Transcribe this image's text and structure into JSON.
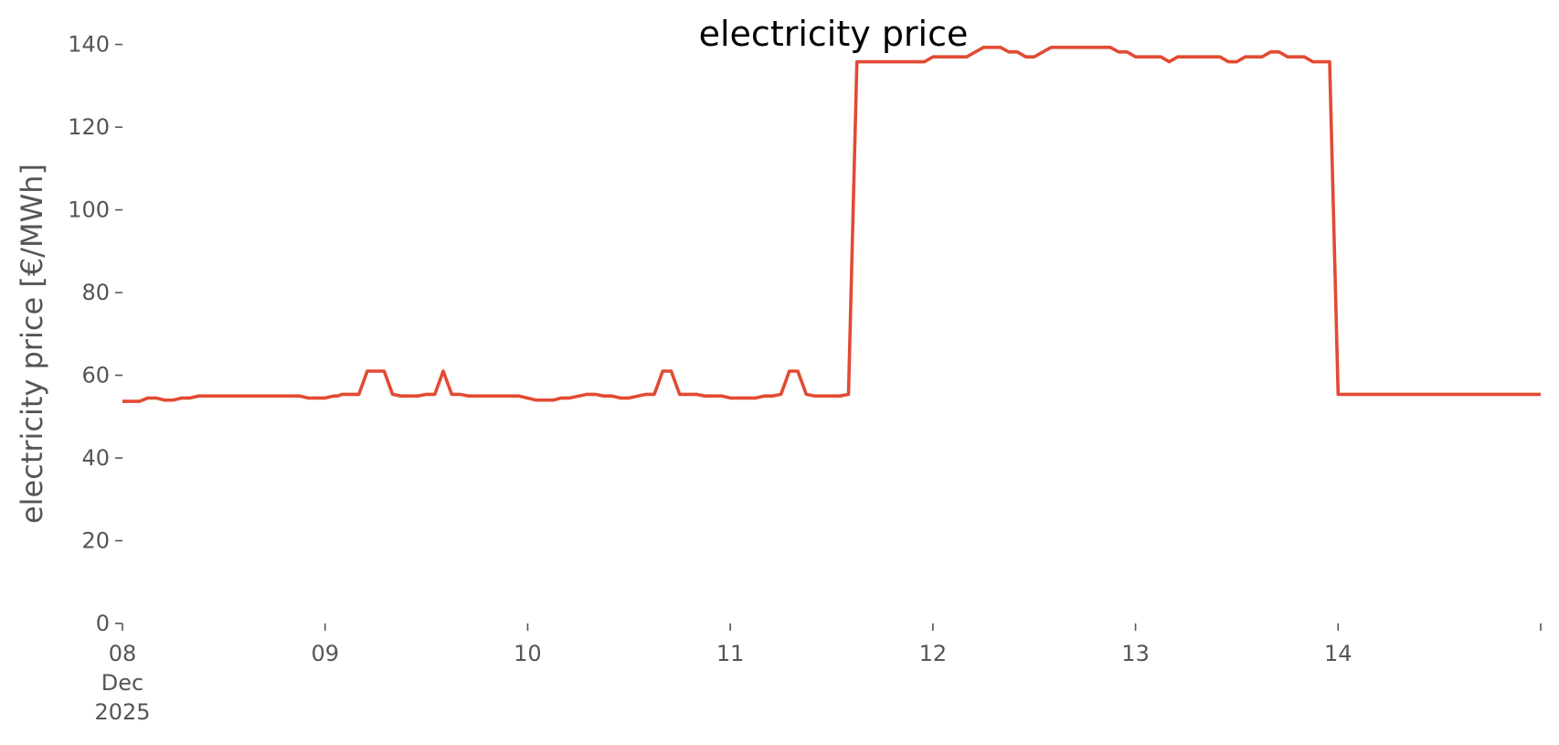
{
  "chart_data": {
    "type": "line",
    "title": "electricity price",
    "xlabel": "",
    "ylabel": "electricity price [€/MWh]",
    "ylim": [
      0,
      145
    ],
    "yticks": [
      0,
      20,
      40,
      60,
      80,
      100,
      120,
      140
    ],
    "xlim": [
      "2025-12-08T00:00",
      "2025-12-15T00:00"
    ],
    "xtick_labels": [
      {
        "date": "2025-12-08",
        "lines": [
          "08",
          "Dec",
          "2025"
        ]
      },
      {
        "date": "2025-12-09",
        "lines": [
          "09"
        ]
      },
      {
        "date": "2025-12-10",
        "lines": [
          "10"
        ]
      },
      {
        "date": "2025-12-11",
        "lines": [
          "11"
        ]
      },
      {
        "date": "2025-12-12",
        "lines": [
          "12"
        ]
      },
      {
        "date": "2025-12-13",
        "lines": [
          "13"
        ]
      },
      {
        "date": "2025-12-14",
        "lines": [
          "14"
        ]
      },
      {
        "date": "2025-12-15",
        "lines": [
          ""
        ]
      }
    ],
    "grid": false,
    "color": "#E24A33",
    "series": [
      {
        "name": "",
        "points": [
          [
            "2025-12-08T00:00",
            53.7
          ],
          [
            "2025-12-08T02:00",
            53.7
          ],
          [
            "2025-12-08T03:00",
            54.5
          ],
          [
            "2025-12-08T04:00",
            54.5
          ],
          [
            "2025-12-08T05:00",
            54.0
          ],
          [
            "2025-12-08T06:00",
            54.0
          ],
          [
            "2025-12-08T07:00",
            54.5
          ],
          [
            "2025-12-08T08:00",
            54.5
          ],
          [
            "2025-12-08T09:00",
            55.0
          ],
          [
            "2025-12-08T21:00",
            55.0
          ],
          [
            "2025-12-08T22:00",
            54.5
          ],
          [
            "2025-12-09T00:00",
            54.5
          ],
          [
            "2025-12-09T01:00",
            55.0
          ],
          [
            "2025-12-09T01:30",
            55.0
          ],
          [
            "2025-12-09T02:00",
            55.4
          ],
          [
            "2025-12-09T04:00",
            55.4
          ],
          [
            "2025-12-09T05:00",
            61.0
          ],
          [
            "2025-12-09T07:00",
            61.0
          ],
          [
            "2025-12-09T08:00",
            55.4
          ],
          [
            "2025-12-09T09:00",
            55.0
          ],
          [
            "2025-12-09T11:00",
            55.0
          ],
          [
            "2025-12-09T12:00",
            55.4
          ],
          [
            "2025-12-09T13:00",
            55.4
          ],
          [
            "2025-12-09T14:00",
            61.0
          ],
          [
            "2025-12-09T15:00",
            55.4
          ],
          [
            "2025-12-09T16:00",
            55.4
          ],
          [
            "2025-12-09T17:00",
            55.0
          ],
          [
            "2025-12-09T23:00",
            55.0
          ],
          [
            "2025-12-10T01:00",
            54.0
          ],
          [
            "2025-12-10T03:00",
            54.0
          ],
          [
            "2025-12-10T04:00",
            54.5
          ],
          [
            "2025-12-10T05:00",
            54.5
          ],
          [
            "2025-12-10T07:00",
            55.4
          ],
          [
            "2025-12-10T08:00",
            55.4
          ],
          [
            "2025-12-10T09:00",
            55.0
          ],
          [
            "2025-12-10T10:00",
            55.0
          ],
          [
            "2025-12-10T11:00",
            54.5
          ],
          [
            "2025-12-10T12:00",
            54.5
          ],
          [
            "2025-12-10T14:00",
            55.4
          ],
          [
            "2025-12-10T15:00",
            55.4
          ],
          [
            "2025-12-10T16:00",
            61.0
          ],
          [
            "2025-12-10T17:00",
            61.0
          ],
          [
            "2025-12-10T18:00",
            55.4
          ],
          [
            "2025-12-10T20:00",
            55.4
          ],
          [
            "2025-12-10T21:00",
            55.0
          ],
          [
            "2025-12-10T23:00",
            55.0
          ],
          [
            "2025-12-11T00:00",
            54.5
          ],
          [
            "2025-12-11T03:00",
            54.5
          ],
          [
            "2025-12-11T04:00",
            55.0
          ],
          [
            "2025-12-11T05:00",
            55.0
          ],
          [
            "2025-12-11T06:00",
            55.4
          ],
          [
            "2025-12-11T07:00",
            61.0
          ],
          [
            "2025-12-11T08:00",
            61.0
          ],
          [
            "2025-12-11T09:00",
            55.4
          ],
          [
            "2025-12-11T10:00",
            55.0
          ],
          [
            "2025-12-11T13:00",
            55.0
          ],
          [
            "2025-12-11T14:00",
            55.4
          ],
          [
            "2025-12-11T15:00",
            135.8
          ],
          [
            "2025-12-11T23:00",
            135.8
          ],
          [
            "2025-12-12T00:00",
            137.0
          ],
          [
            "2025-12-12T04:00",
            137.0
          ],
          [
            "2025-12-12T06:00",
            139.3
          ],
          [
            "2025-12-12T08:00",
            139.3
          ],
          [
            "2025-12-12T09:00",
            138.2
          ],
          [
            "2025-12-12T10:00",
            138.2
          ],
          [
            "2025-12-12T11:00",
            137.0
          ],
          [
            "2025-12-12T12:00",
            137.0
          ],
          [
            "2025-12-12T14:00",
            139.3
          ],
          [
            "2025-12-12T21:00",
            139.3
          ],
          [
            "2025-12-12T22:00",
            138.2
          ],
          [
            "2025-12-12T23:00",
            138.2
          ],
          [
            "2025-12-13T00:00",
            137.0
          ],
          [
            "2025-12-13T03:00",
            137.0
          ],
          [
            "2025-12-13T04:00",
            135.8
          ],
          [
            "2025-12-13T05:00",
            137.0
          ],
          [
            "2025-12-13T10:00",
            137.0
          ],
          [
            "2025-12-13T11:00",
            135.8
          ],
          [
            "2025-12-13T12:00",
            135.8
          ],
          [
            "2025-12-13T13:00",
            137.0
          ],
          [
            "2025-12-13T15:00",
            137.0
          ],
          [
            "2025-12-13T16:00",
            138.2
          ],
          [
            "2025-12-13T17:00",
            138.2
          ],
          [
            "2025-12-13T18:00",
            137.0
          ],
          [
            "2025-12-13T20:00",
            137.0
          ],
          [
            "2025-12-13T21:00",
            135.8
          ],
          [
            "2025-12-13T23:00",
            135.8
          ],
          [
            "2025-12-14T00:00",
            55.4
          ],
          [
            "2025-12-15T00:00",
            55.4
          ]
        ]
      }
    ]
  }
}
